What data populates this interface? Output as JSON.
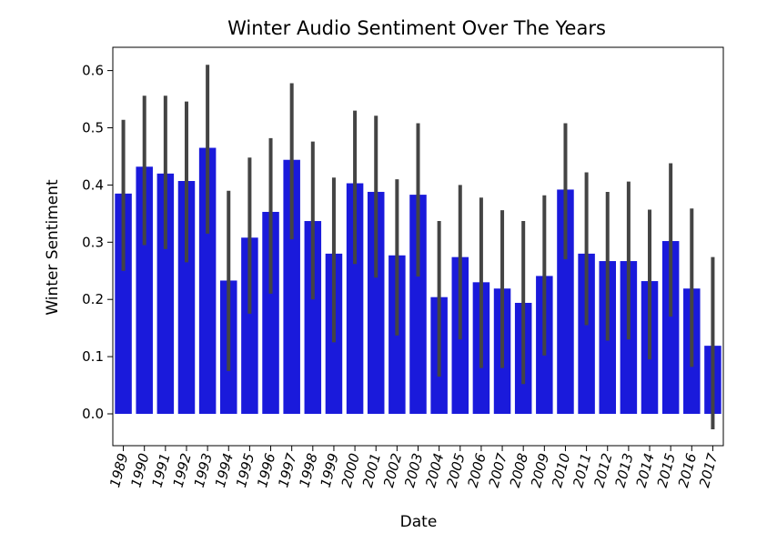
{
  "chart_data": {
    "type": "bar",
    "title": "Winter Audio Sentiment Over The Years",
    "xlabel": "Date",
    "ylabel": "Winter Sentiment",
    "categories": [
      "1989",
      "1990",
      "1991",
      "1992",
      "1993",
      "1994",
      "1995",
      "1996",
      "1997",
      "1998",
      "1999",
      "2000",
      "2001",
      "2002",
      "2003",
      "2004",
      "2005",
      "2006",
      "2007",
      "2008",
      "2009",
      "2010",
      "2011",
      "2012",
      "2013",
      "2014",
      "2015",
      "2016",
      "2017"
    ],
    "values": [
      0.385,
      0.432,
      0.42,
      0.407,
      0.465,
      0.233,
      0.308,
      0.353,
      0.444,
      0.337,
      0.28,
      0.403,
      0.388,
      0.277,
      0.383,
      0.204,
      0.274,
      0.23,
      0.219,
      0.194,
      0.241,
      0.392,
      0.28,
      0.267,
      0.267,
      0.232,
      0.302,
      0.219,
      0.119
    ],
    "error_low": [
      0.25,
      0.295,
      0.288,
      0.265,
      0.315,
      0.075,
      0.175,
      0.21,
      0.305,
      0.2,
      0.125,
      0.262,
      0.238,
      0.137,
      0.24,
      0.065,
      0.13,
      0.08,
      0.08,
      0.052,
      0.102,
      0.27,
      0.155,
      0.128,
      0.13,
      0.095,
      0.17,
      0.082,
      -0.027
    ],
    "error_high": [
      0.514,
      0.556,
      0.556,
      0.546,
      0.61,
      0.39,
      0.448,
      0.482,
      0.578,
      0.476,
      0.413,
      0.53,
      0.521,
      0.41,
      0.508,
      0.337,
      0.4,
      0.378,
      0.356,
      0.337,
      0.382,
      0.508,
      0.422,
      0.388,
      0.406,
      0.357,
      0.438,
      0.359,
      0.274
    ],
    "yticks": [
      "0.0",
      "0.1",
      "0.2",
      "0.3",
      "0.4",
      "0.5",
      "0.6"
    ],
    "ylim": [
      -0.055,
      0.65
    ],
    "bar_color": "#1a1adb",
    "error_color": "#444444",
    "grid": false
  }
}
